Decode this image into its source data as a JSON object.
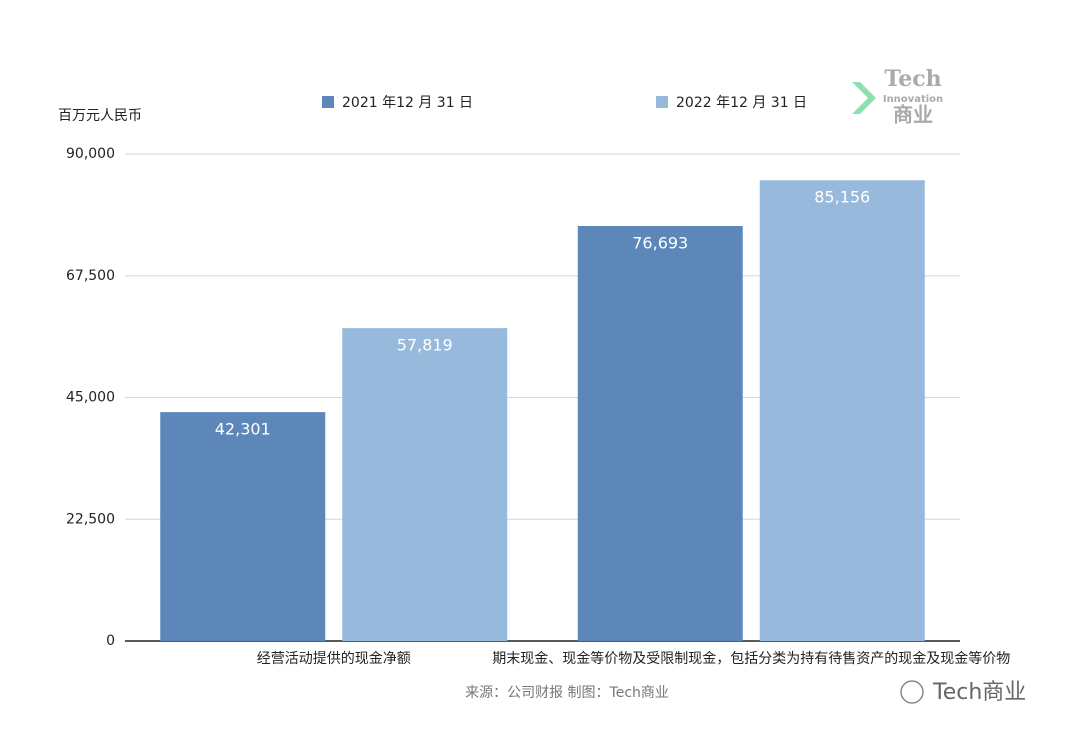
{
  "chart_data": {
    "type": "bar",
    "y_axis_label": "百万元人民币",
    "categories": [
      "经营活动提供的现金净额",
      "期末现金、现金等价物及受限制现金，包括分类为持有待售资产的现金及现金等价物"
    ],
    "series": [
      {
        "name": "2021 年12 月 31 日",
        "color": "#5d87b9",
        "values": [
          42301,
          76693
        ],
        "value_labels": [
          "42,301",
          "76,693"
        ]
      },
      {
        "name": "2022 年12 月 31 日",
        "color": "#97b9dc",
        "values": [
          57819,
          85156
        ],
        "value_labels": [
          "57,819",
          "85,156"
        ]
      }
    ],
    "ylim": [
      0,
      90000
    ],
    "yticks": [
      0,
      {
        "value": 22500,
        "label": "22,500"
      },
      {
        "value": 45000,
        "label": "45,000"
      },
      {
        "value": 67500,
        "label": "67,500"
      },
      {
        "value": 90000,
        "label": "90,000"
      }
    ],
    "grid": true,
    "source": "来源：公司财报 制图：Tech商业",
    "logo": {
      "title": "Tech",
      "subtitle": "Innovation",
      "name": "商业"
    },
    "watermark": "Tech商业"
  }
}
